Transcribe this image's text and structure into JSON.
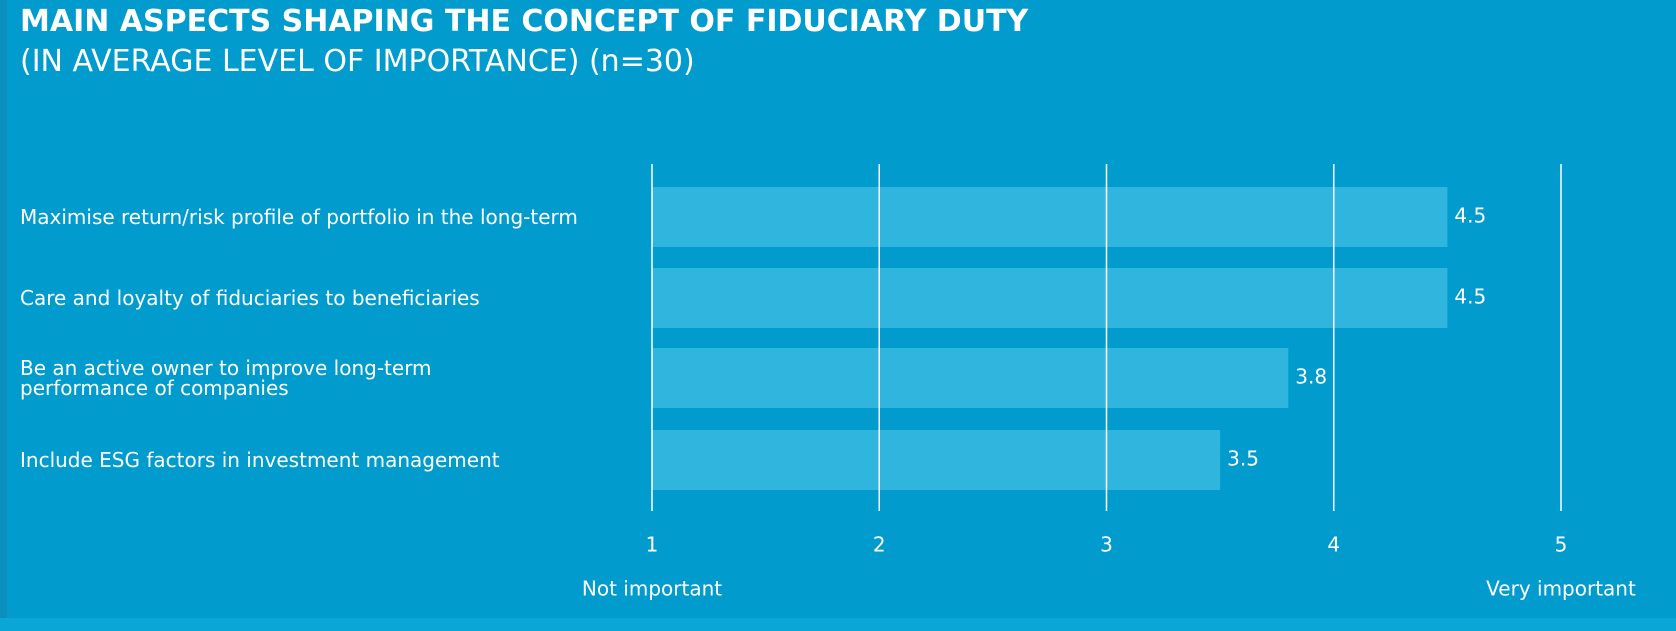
{
  "chart_data": {
    "type": "barh",
    "title": "MAIN ASPECTS SHAPING THE CONCEPT OF FIDUCIARY DUTY",
    "subtitle": "(IN AVERAGE LEVEL OF IMPORTANCE) (n=30)",
    "categories": [
      "Maximise return/risk profile of portfolio in the long-term",
      "Care and loyalty of fiduciaries to beneficiaries",
      "Be an active owner to improve long-term\nperformance of companies",
      "Include ESG factors in investment management"
    ],
    "values": [
      4.5,
      4.5,
      3.8,
      3.5
    ],
    "color": "#30b5de",
    "xlim": [
      1,
      5
    ],
    "xticks": [
      1,
      2,
      3,
      4,
      5
    ],
    "grid": true,
    "x_end_labels": [
      "Not important",
      "Very important"
    ]
  }
}
